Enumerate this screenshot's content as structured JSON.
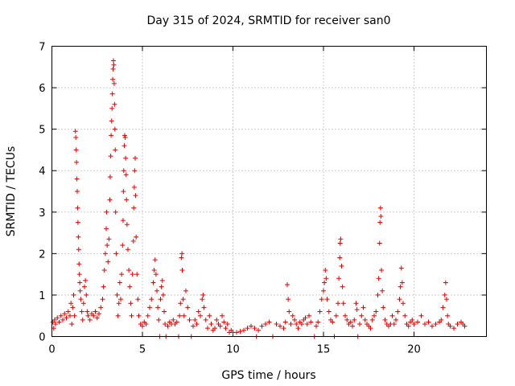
{
  "chart_data": {
    "type": "scatter",
    "title": "Day 315 of 2024, SRMTID for receiver san0",
    "xlabel": "GPS time / hours",
    "ylabel": "SRMTID / TECUs",
    "xlim": [
      0,
      24
    ],
    "ylim": [
      0,
      7
    ],
    "xticks": [
      0,
      5,
      10,
      15,
      20
    ],
    "yticks": [
      0,
      1,
      2,
      3,
      4,
      5,
      6,
      7
    ],
    "grid": true,
    "marker": "plus",
    "marker_color": "#e00000",
    "series": [
      {
        "name": "san0",
        "points": [
          [
            0.05,
            0.35
          ],
          [
            0.1,
            0.2
          ],
          [
            0.15,
            0.4
          ],
          [
            0.2,
            0.3
          ],
          [
            0.3,
            0.45
          ],
          [
            0.4,
            0.35
          ],
          [
            0.5,
            0.5
          ],
          [
            0.6,
            0.4
          ],
          [
            0.7,
            0.55
          ],
          [
            0.8,
            0.45
          ],
          [
            0.9,
            0.6
          ],
          [
            1.0,
            0.5
          ],
          [
            1.05,
            0.8
          ],
          [
            1.1,
            0.3
          ],
          [
            1.15,
            0.7
          ],
          [
            1.2,
            1.0
          ],
          [
            1.25,
            0.5
          ],
          [
            1.3,
            4.95
          ],
          [
            1.32,
            4.8
          ],
          [
            1.34,
            4.5
          ],
          [
            1.36,
            4.2
          ],
          [
            1.38,
            3.8
          ],
          [
            1.4,
            3.5
          ],
          [
            1.42,
            3.1
          ],
          [
            1.44,
            2.75
          ],
          [
            1.46,
            2.4
          ],
          [
            1.48,
            2.1
          ],
          [
            1.5,
            1.75
          ],
          [
            1.52,
            1.5
          ],
          [
            1.54,
            1.3
          ],
          [
            1.56,
            1.1
          ],
          [
            1.6,
            0.9
          ],
          [
            1.65,
            0.6
          ],
          [
            1.7,
            0.4
          ],
          [
            1.75,
            0.8
          ],
          [
            1.8,
            1.2
          ],
          [
            1.85,
            1.35
          ],
          [
            1.9,
            1.0
          ],
          [
            1.95,
            0.6
          ],
          [
            2.0,
            0.5
          ],
          [
            2.1,
            0.4
          ],
          [
            2.2,
            0.55
          ],
          [
            2.3,
            0.5
          ],
          [
            2.4,
            0.6
          ],
          [
            2.5,
            0.45
          ],
          [
            2.6,
            0.55
          ],
          [
            2.7,
            0.7
          ],
          [
            2.8,
            0.9
          ],
          [
            2.85,
            1.2
          ],
          [
            2.9,
            1.6
          ],
          [
            2.95,
            2.0
          ],
          [
            3.0,
            2.6
          ],
          [
            3.02,
            3.0
          ],
          [
            3.05,
            2.2
          ],
          [
            3.1,
            1.8
          ],
          [
            3.15,
            2.35
          ],
          [
            3.2,
            3.3
          ],
          [
            3.22,
            3.85
          ],
          [
            3.25,
            4.35
          ],
          [
            3.27,
            4.85
          ],
          [
            3.3,
            5.2
          ],
          [
            3.32,
            5.5
          ],
          [
            3.34,
            5.85
          ],
          [
            3.36,
            6.2
          ],
          [
            3.38,
            6.45
          ],
          [
            3.4,
            6.65
          ],
          [
            3.42,
            6.55
          ],
          [
            3.44,
            6.1
          ],
          [
            3.46,
            5.6
          ],
          [
            3.48,
            5.0
          ],
          [
            3.5,
            4.5
          ],
          [
            3.52,
            3.0
          ],
          [
            3.55,
            2.0
          ],
          [
            3.6,
            1.0
          ],
          [
            3.65,
            0.5
          ],
          [
            3.7,
            0.8
          ],
          [
            3.75,
            1.3
          ],
          [
            3.8,
            0.9
          ],
          [
            3.85,
            1.5
          ],
          [
            3.9,
            2.2
          ],
          [
            3.93,
            2.8
          ],
          [
            3.95,
            3.5
          ],
          [
            3.97,
            4.0
          ],
          [
            4.0,
            4.6
          ],
          [
            4.02,
            4.85
          ],
          [
            4.05,
            4.8
          ],
          [
            4.07,
            4.3
          ],
          [
            4.1,
            3.9
          ],
          [
            4.12,
            3.3
          ],
          [
            4.15,
            2.7
          ],
          [
            4.2,
            2.1
          ],
          [
            4.25,
            1.6
          ],
          [
            4.3,
            1.2
          ],
          [
            4.35,
            0.8
          ],
          [
            4.4,
            0.5
          ],
          [
            4.45,
            1.5
          ],
          [
            4.5,
            2.3
          ],
          [
            4.52,
            3.1
          ],
          [
            4.55,
            3.6
          ],
          [
            4.57,
            4.0
          ],
          [
            4.6,
            4.3
          ],
          [
            4.62,
            3.4
          ],
          [
            4.65,
            2.4
          ],
          [
            4.7,
            1.5
          ],
          [
            4.75,
            0.9
          ],
          [
            4.8,
            0.5
          ],
          [
            4.9,
            0.3
          ],
          [
            5.0,
            0.25
          ],
          [
            5.1,
            0.35
          ],
          [
            5.2,
            0.3
          ],
          [
            5.3,
            0.5
          ],
          [
            5.4,
            0.7
          ],
          [
            5.5,
            0.9
          ],
          [
            5.6,
            1.3
          ],
          [
            5.65,
            1.6
          ],
          [
            5.7,
            1.85
          ],
          [
            5.75,
            1.5
          ],
          [
            5.8,
            1.1
          ],
          [
            5.85,
            0.7
          ],
          [
            5.9,
            0.4
          ],
          [
            5.95,
            0.0
          ],
          [
            6.0,
            0.9
          ],
          [
            6.05,
            1.2
          ],
          [
            6.1,
            1.35
          ],
          [
            6.15,
            1.0
          ],
          [
            6.2,
            0.6
          ],
          [
            6.25,
            0.3
          ],
          [
            6.3,
            0.0
          ],
          [
            6.4,
            0.25
          ],
          [
            6.5,
            0.35
          ],
          [
            6.6,
            0.3
          ],
          [
            6.7,
            0.4
          ],
          [
            6.8,
            0.3
          ],
          [
            6.9,
            0.35
          ],
          [
            7.0,
            0.0
          ],
          [
            7.05,
            0.5
          ],
          [
            7.1,
            0.8
          ],
          [
            7.15,
            1.9
          ],
          [
            7.18,
            2.0
          ],
          [
            7.2,
            1.6
          ],
          [
            7.25,
            0.9
          ],
          [
            7.3,
            0.5
          ],
          [
            7.4,
            1.1
          ],
          [
            7.5,
            0.7
          ],
          [
            7.6,
            0.4
          ],
          [
            7.7,
            0.0
          ],
          [
            7.8,
            0.25
          ],
          [
            7.9,
            0.4
          ],
          [
            8.0,
            0.3
          ],
          [
            8.1,
            0.6
          ],
          [
            8.2,
            0.5
          ],
          [
            8.3,
            0.9
          ],
          [
            8.35,
            1.0
          ],
          [
            8.4,
            0.7
          ],
          [
            8.5,
            0.4
          ],
          [
            8.6,
            0.2
          ],
          [
            8.7,
            0.5
          ],
          [
            8.8,
            0.3
          ],
          [
            8.9,
            0.15
          ],
          [
            9.0,
            0.2
          ],
          [
            9.1,
            0.4
          ],
          [
            9.2,
            0.3
          ],
          [
            9.3,
            0.25
          ],
          [
            9.4,
            0.5
          ],
          [
            9.5,
            0.35
          ],
          [
            9.6,
            0.2
          ],
          [
            9.7,
            0.3
          ],
          [
            9.8,
            0.1
          ],
          [
            9.9,
            0.15
          ],
          [
            10.0,
            0.1
          ],
          [
            10.2,
            0.1
          ],
          [
            10.4,
            0.12
          ],
          [
            10.6,
            0.15
          ],
          [
            10.8,
            0.2
          ],
          [
            11.0,
            0.25
          ],
          [
            11.2,
            0.2
          ],
          [
            11.3,
            0.0
          ],
          [
            11.4,
            0.15
          ],
          [
            11.6,
            0.25
          ],
          [
            11.8,
            0.3
          ],
          [
            12.0,
            0.35
          ],
          [
            12.2,
            0.0
          ],
          [
            12.4,
            0.3
          ],
          [
            12.6,
            0.25
          ],
          [
            12.8,
            0.2
          ],
          [
            12.9,
            0.35
          ],
          [
            13.0,
            1.25
          ],
          [
            13.05,
            0.9
          ],
          [
            13.1,
            0.6
          ],
          [
            13.2,
            0.3
          ],
          [
            13.3,
            0.5
          ],
          [
            13.4,
            0.4
          ],
          [
            13.5,
            0.3
          ],
          [
            13.6,
            0.2
          ],
          [
            13.7,
            0.35
          ],
          [
            13.8,
            0.3
          ],
          [
            13.9,
            0.4
          ],
          [
            14.0,
            0.45
          ],
          [
            14.1,
            0.3
          ],
          [
            14.2,
            0.5
          ],
          [
            14.3,
            0.35
          ],
          [
            14.5,
            0.0
          ],
          [
            14.6,
            0.25
          ],
          [
            14.7,
            0.35
          ],
          [
            14.8,
            0.6
          ],
          [
            14.9,
            0.9
          ],
          [
            15.0,
            1.1
          ],
          [
            15.05,
            1.3
          ],
          [
            15.1,
            1.6
          ],
          [
            15.15,
            1.4
          ],
          [
            15.2,
            0.9
          ],
          [
            15.3,
            0.6
          ],
          [
            15.4,
            0.4
          ],
          [
            15.5,
            0.35
          ],
          [
            15.6,
            0.0
          ],
          [
            15.7,
            0.5
          ],
          [
            15.8,
            0.8
          ],
          [
            15.85,
            1.4
          ],
          [
            15.9,
            1.9
          ],
          [
            15.92,
            2.25
          ],
          [
            15.95,
            2.35
          ],
          [
            16.0,
            1.7
          ],
          [
            16.05,
            1.2
          ],
          [
            16.1,
            0.8
          ],
          [
            16.2,
            0.5
          ],
          [
            16.3,
            0.4
          ],
          [
            16.4,
            0.3
          ],
          [
            16.5,
            0.35
          ],
          [
            16.6,
            0.25
          ],
          [
            16.7,
            0.4
          ],
          [
            16.8,
            0.8
          ],
          [
            16.85,
            0.65
          ],
          [
            16.9,
            0.0
          ],
          [
            17.0,
            0.3
          ],
          [
            17.1,
            0.5
          ],
          [
            17.2,
            0.7
          ],
          [
            17.3,
            0.4
          ],
          [
            17.4,
            0.3
          ],
          [
            17.5,
            0.25
          ],
          [
            17.6,
            0.2
          ],
          [
            17.7,
            0.4
          ],
          [
            17.8,
            0.5
          ],
          [
            17.9,
            0.6
          ],
          [
            18.0,
            1.0
          ],
          [
            18.05,
            1.4
          ],
          [
            18.1,
            2.25
          ],
          [
            18.12,
            2.75
          ],
          [
            18.15,
            3.1
          ],
          [
            18.17,
            2.9
          ],
          [
            18.2,
            1.6
          ],
          [
            18.25,
            1.1
          ],
          [
            18.3,
            0.7
          ],
          [
            18.4,
            0.4
          ],
          [
            18.5,
            0.3
          ],
          [
            18.6,
            0.25
          ],
          [
            18.7,
            0.3
          ],
          [
            18.8,
            0.5
          ],
          [
            18.9,
            0.3
          ],
          [
            19.0,
            0.4
          ],
          [
            19.1,
            0.6
          ],
          [
            19.2,
            0.9
          ],
          [
            19.25,
            1.2
          ],
          [
            19.3,
            1.65
          ],
          [
            19.35,
            1.3
          ],
          [
            19.4,
            0.8
          ],
          [
            19.5,
            0.5
          ],
          [
            19.6,
            0.3
          ],
          [
            19.7,
            0.25
          ],
          [
            19.8,
            0.35
          ],
          [
            19.9,
            0.4
          ],
          [
            20.0,
            0.3
          ],
          [
            20.2,
            0.35
          ],
          [
            20.4,
            0.5
          ],
          [
            20.6,
            0.3
          ],
          [
            20.8,
            0.35
          ],
          [
            21.0,
            0.25
          ],
          [
            21.2,
            0.3
          ],
          [
            21.4,
            0.35
          ],
          [
            21.5,
            0.4
          ],
          [
            21.6,
            0.7
          ],
          [
            21.7,
            1.0
          ],
          [
            21.75,
            1.3
          ],
          [
            21.8,
            0.9
          ],
          [
            21.85,
            0.5
          ],
          [
            21.9,
            0.3
          ],
          [
            22.0,
            0.25
          ],
          [
            22.2,
            0.2
          ],
          [
            22.4,
            0.3
          ],
          [
            22.6,
            0.35
          ],
          [
            22.7,
            0.3
          ],
          [
            22.8,
            0.25
          ]
        ]
      }
    ]
  }
}
